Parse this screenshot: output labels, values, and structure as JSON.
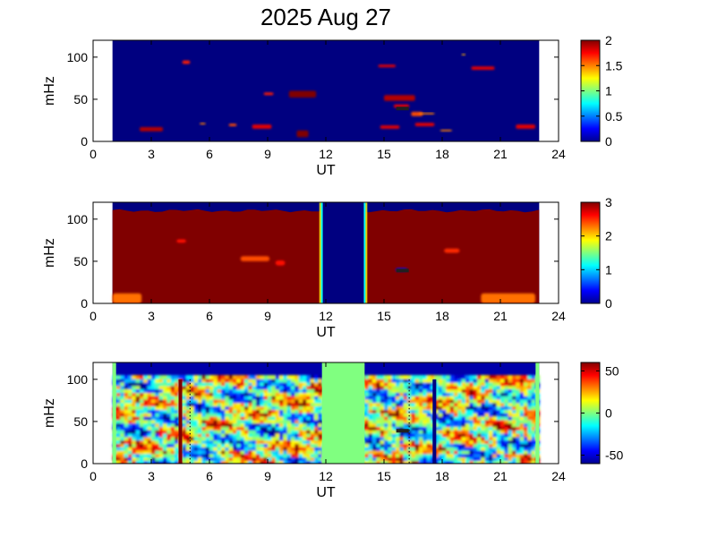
{
  "title": "2025 Aug 27",
  "chart_data": [
    {
      "type": "heatmap",
      "panel": 1,
      "xlabel": "UT",
      "ylabel": "mHz",
      "xlim": [
        0,
        24
      ],
      "ylim": [
        0,
        120
      ],
      "x_ticks": [
        "0",
        "3",
        "6",
        "9",
        "12",
        "15",
        "18",
        "21",
        "24"
      ],
      "y_ticks": [
        "0",
        "50",
        "100"
      ],
      "data_range_x": [
        1,
        23
      ],
      "colorbar": {
        "min": 0,
        "max": 2,
        "ticks": [
          "0",
          "0.5",
          "1",
          "1.5",
          "2"
        ]
      },
      "background_value": 0,
      "features": [
        {
          "x": 2.4,
          "y": 12,
          "w": 1.2,
          "h": 5,
          "value": 1.9
        },
        {
          "x": 4.6,
          "y": 92,
          "w": 0.4,
          "h": 4,
          "value": 1.7
        },
        {
          "x": 5.5,
          "y": 20,
          "w": 0.3,
          "h": 2,
          "value": 1.5
        },
        {
          "x": 7.0,
          "y": 18,
          "w": 0.4,
          "h": 3,
          "value": 1.6
        },
        {
          "x": 8.2,
          "y": 15,
          "w": 1.0,
          "h": 5,
          "value": 1.8
        },
        {
          "x": 8.8,
          "y": 55,
          "w": 0.5,
          "h": 3,
          "value": 1.7
        },
        {
          "x": 10.1,
          "y": 52,
          "w": 1.4,
          "h": 8,
          "value": 2.0
        },
        {
          "x": 10.5,
          "y": 5,
          "w": 0.6,
          "h": 8,
          "value": 2.0
        },
        {
          "x": 14.7,
          "y": 88,
          "w": 0.9,
          "h": 3,
          "value": 1.8
        },
        {
          "x": 15.0,
          "y": 48,
          "w": 1.6,
          "h": 7,
          "value": 1.9
        },
        {
          "x": 15.5,
          "y": 40,
          "w": 0.8,
          "h": 4,
          "value": 1.8
        },
        {
          "x": 14.8,
          "y": 15,
          "w": 1.0,
          "h": 4,
          "value": 1.8
        },
        {
          "x": 16.4,
          "y": 30,
          "w": 0.6,
          "h": 5,
          "value": 1.6
        },
        {
          "x": 16.8,
          "y": 32,
          "w": 0.8,
          "h": 2,
          "value": 1.5
        },
        {
          "x": 16.6,
          "y": 18,
          "w": 1.0,
          "h": 4,
          "value": 1.8
        },
        {
          "x": 17.9,
          "y": 12,
          "w": 0.6,
          "h": 2,
          "value": 1.5
        },
        {
          "x": 19.5,
          "y": 85,
          "w": 1.2,
          "h": 4,
          "value": 1.8
        },
        {
          "x": 19.0,
          "y": 102,
          "w": 0.2,
          "h": 2,
          "value": 1.4
        },
        {
          "x": 21.8,
          "y": 15,
          "w": 1.0,
          "h": 5,
          "value": 1.8
        }
      ]
    },
    {
      "type": "heatmap",
      "panel": 2,
      "xlabel": "UT",
      "ylabel": "mHz",
      "xlim": [
        0,
        24
      ],
      "ylim": [
        0,
        120
      ],
      "x_ticks": [
        "0",
        "3",
        "6",
        "9",
        "12",
        "15",
        "18",
        "21",
        "24"
      ],
      "y_ticks": [
        "0",
        "50",
        "100"
      ],
      "data_range_x": [
        1,
        23
      ],
      "colorbar": {
        "min": 0,
        "max": 3,
        "ticks": [
          "0",
          "1",
          "2",
          "3"
        ]
      },
      "background_value": 3,
      "top_cutoff_mhz": 110,
      "gap": {
        "x0": 11.8,
        "x1": 14.0,
        "value": 0
      },
      "features": [
        {
          "x": 1.0,
          "y": 0,
          "w": 1.5,
          "h": 12,
          "value": 2.3
        },
        {
          "x": 4.3,
          "y": 72,
          "w": 0.5,
          "h": 4,
          "value": 2.6
        },
        {
          "x": 7.6,
          "y": 50,
          "w": 1.5,
          "h": 6,
          "value": 2.4
        },
        {
          "x": 9.4,
          "y": 45,
          "w": 0.5,
          "h": 6,
          "value": 2.6
        },
        {
          "x": 18.1,
          "y": 60,
          "w": 0.8,
          "h": 5,
          "value": 2.5
        },
        {
          "x": 20.0,
          "y": 0,
          "w": 2.8,
          "h": 12,
          "value": 2.3
        },
        {
          "x": 15.6,
          "y": 38,
          "w": 0.6,
          "h": 4,
          "value": 0.4
        }
      ]
    },
    {
      "type": "heatmap",
      "panel": 3,
      "xlabel": "UT",
      "ylabel": "mHz",
      "xlim": [
        0,
        24
      ],
      "ylim": [
        0,
        120
      ],
      "x_ticks": [
        "0",
        "3",
        "6",
        "9",
        "12",
        "15",
        "18",
        "21",
        "24"
      ],
      "y_ticks": [
        "0",
        "50",
        "100"
      ],
      "data_range_x": [
        1,
        23
      ],
      "colorbar": {
        "min": -60,
        "max": 60,
        "ticks": [
          "50",
          "0",
          "-50"
        ]
      },
      "background_value": 0,
      "top_cutoff_mhz": 105,
      "gap": {
        "x0": 11.8,
        "x1": 14.0,
        "value": 0
      },
      "vertical_lines": [
        {
          "x": 4.5,
          "value": 60
        },
        {
          "x": 17.6,
          "value": -60
        }
      ],
      "noise_seed": 27
    }
  ]
}
